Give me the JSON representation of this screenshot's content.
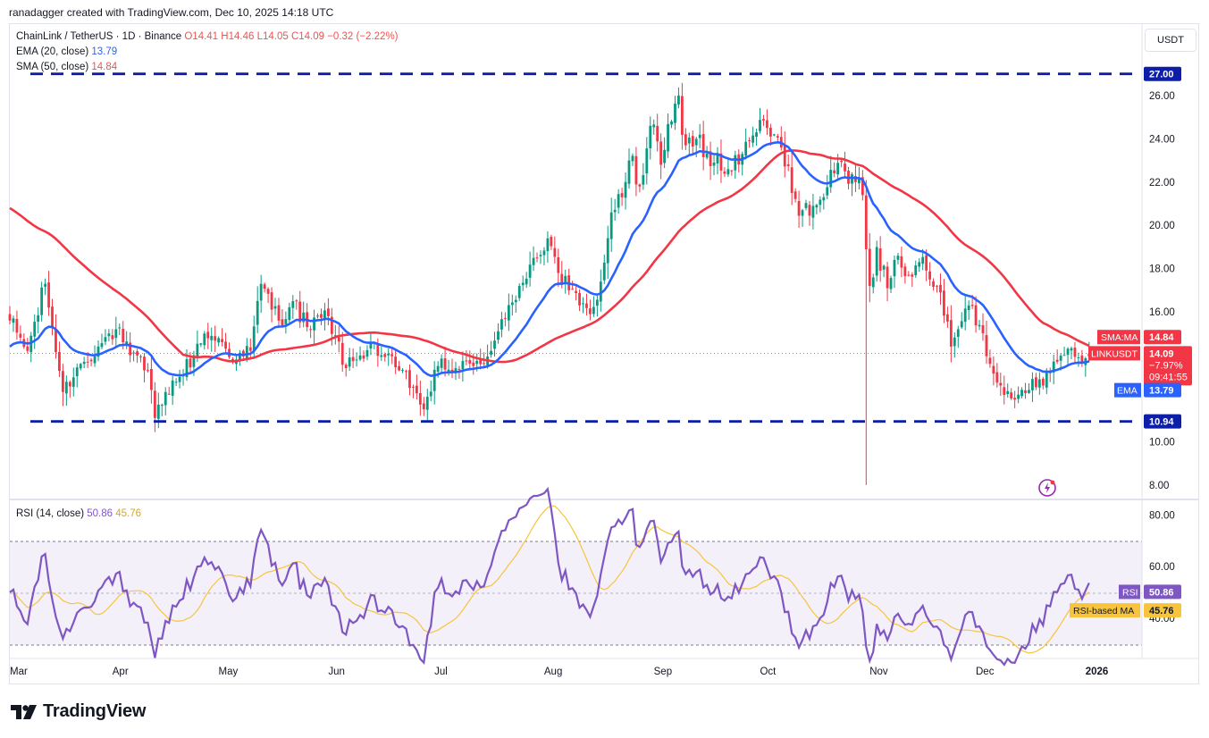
{
  "caption": "ranadagger created with TradingView.com, Dec 10, 2025 14:18 UTC",
  "legend": {
    "symbol": "ChainLink / TetherUS · 1D · Binance",
    "ohlc": {
      "o": "O14.41",
      "h": "H14.46",
      "l": "L14.05",
      "c": "C14.09",
      "chg": "−0.32 (−2.22%)"
    },
    "ema": {
      "label": "EMA (20, close)",
      "value": "13.79"
    },
    "sma": {
      "label": "SMA (50, close)",
      "value": "14.84"
    },
    "rsi": {
      "label": "RSI (14, close)",
      "value": "50.86",
      "ma_value": "45.76"
    }
  },
  "currency_button": "USDT",
  "brand": "TradingView",
  "colors": {
    "up": "#089981",
    "down": "#f23645",
    "ema": "#2962ff",
    "sma": "#f23645",
    "rsi": "#7e57c2",
    "rsi_ma": "#f7c43b",
    "levels": "#0d1fa8"
  },
  "chart_data": [
    {
      "type": "candlestick",
      "title": "ChainLink / TetherUS · 1D · Binance",
      "ylim": [
        7.5,
        29.3
      ],
      "yticks": [
        8,
        10,
        12,
        14,
        16,
        18,
        20,
        22,
        24,
        26
      ],
      "ytick_labels": [
        "8.00",
        "10.00",
        "",
        "",
        "16.00",
        "18.00",
        "20.00",
        "22.00",
        "24.00",
        "26.00"
      ],
      "x_months": [
        "Mar",
        "Apr",
        "May",
        "Jun",
        "Jul",
        "Aug",
        "Sep",
        "Oct",
        "Nov",
        "Dec",
        "2026"
      ],
      "x_month_day_index": [
        0,
        31,
        61,
        92,
        122,
        153,
        184,
        214,
        245,
        275,
        306
      ],
      "horizontal_levels": [
        {
          "value": 27.0,
          "label": "27.00"
        },
        {
          "value": 10.94,
          "label": "10.94"
        }
      ],
      "price_tags": [
        {
          "name": "SMA:MA",
          "value": 14.84,
          "label": "14.84"
        },
        {
          "name": "LINKUSDT",
          "value": 14.09,
          "label": "14.09",
          "sub1": "−7.97%",
          "sub2": "09:41:55"
        },
        {
          "name": "EMA",
          "value": 13.79,
          "label": "13.79"
        }
      ],
      "close_anchors": [
        [
          0,
          15.6
        ],
        [
          5,
          14.2
        ],
        [
          10,
          17.3
        ],
        [
          15,
          12.3
        ],
        [
          20,
          13.6
        ],
        [
          25,
          14.4
        ],
        [
          30,
          15.2
        ],
        [
          34,
          14.0
        ],
        [
          39,
          13.3
        ],
        [
          41,
          11.1
        ],
        [
          44,
          12.3
        ],
        [
          48,
          13.0
        ],
        [
          52,
          14.0
        ],
        [
          55,
          15.0
        ],
        [
          60,
          14.6
        ],
        [
          64,
          13.8
        ],
        [
          68,
          14.2
        ],
        [
          71,
          17.3
        ],
        [
          76,
          15.6
        ],
        [
          80,
          16.5
        ],
        [
          84,
          15.3
        ],
        [
          90,
          15.8
        ],
        [
          95,
          13.4
        ],
        [
          98,
          13.8
        ],
        [
          102,
          14.6
        ],
        [
          105,
          14.0
        ],
        [
          110,
          13.3
        ],
        [
          114,
          12.5
        ],
        [
          117,
          11.5
        ],
        [
          121,
          13.5
        ],
        [
          126,
          13.4
        ],
        [
          131,
          13.5
        ],
        [
          136,
          14.2
        ],
        [
          140,
          15.7
        ],
        [
          144,
          17.2
        ],
        [
          148,
          18.5
        ],
        [
          152,
          19.4
        ],
        [
          155,
          17.8
        ],
        [
          158,
          17.0
        ],
        [
          161,
          16.3
        ],
        [
          164,
          15.9
        ],
        [
          167,
          17.4
        ],
        [
          170,
          20.6
        ],
        [
          173,
          21.3
        ],
        [
          175,
          23.0
        ],
        [
          178,
          21.8
        ],
        [
          181,
          24.6
        ],
        [
          184,
          22.8
        ],
        [
          187,
          24.8
        ],
        [
          189,
          26.0
        ],
        [
          191,
          23.7
        ],
        [
          194,
          24.0
        ],
        [
          199,
          22.9
        ],
        [
          204,
          22.5
        ],
        [
          207,
          23.3
        ],
        [
          211,
          24.3
        ],
        [
          214,
          24.5
        ],
        [
          218,
          23.6
        ],
        [
          221,
          21.5
        ],
        [
          224,
          20.7
        ],
        [
          227,
          20.9
        ],
        [
          230,
          21.3
        ],
        [
          233,
          22.4
        ],
        [
          236,
          22.5
        ],
        [
          239,
          22.0
        ],
        [
          241,
          21.4
        ],
        [
          243,
          17.2
        ],
        [
          245,
          19.0
        ],
        [
          248,
          17.1
        ],
        [
          251,
          18.6
        ],
        [
          254,
          17.7
        ],
        [
          257,
          18.3
        ],
        [
          260,
          17.5
        ],
        [
          263,
          16.9
        ],
        [
          266,
          14.4
        ],
        [
          268,
          15.2
        ],
        [
          271,
          16.3
        ],
        [
          274,
          15.4
        ],
        [
          277,
          13.6
        ],
        [
          280,
          12.6
        ],
        [
          283,
          12.0
        ],
        [
          286,
          12.4
        ],
        [
          289,
          12.9
        ],
        [
          292,
          12.6
        ],
        [
          294,
          13.2
        ],
        [
          296,
          13.7
        ],
        [
          299,
          14.3
        ],
        [
          302,
          13.9
        ],
        [
          305,
          14.09
        ]
      ],
      "events": [
        {
          "day": 242,
          "low": 8.0
        }
      ]
    },
    {
      "type": "line",
      "title": "RSI (14, close)",
      "ylim": [
        25,
        85
      ],
      "yticks": [
        40,
        60,
        80
      ],
      "ytick_labels": [
        "40.00",
        "60.00",
        "80.00"
      ],
      "band": [
        30,
        70
      ],
      "midline": 50,
      "series": [
        {
          "name": "RSI",
          "last": 50.86,
          "label": "50.86"
        },
        {
          "name": "RSI-based MA",
          "last": 45.76,
          "label": "45.76"
        }
      ]
    }
  ]
}
